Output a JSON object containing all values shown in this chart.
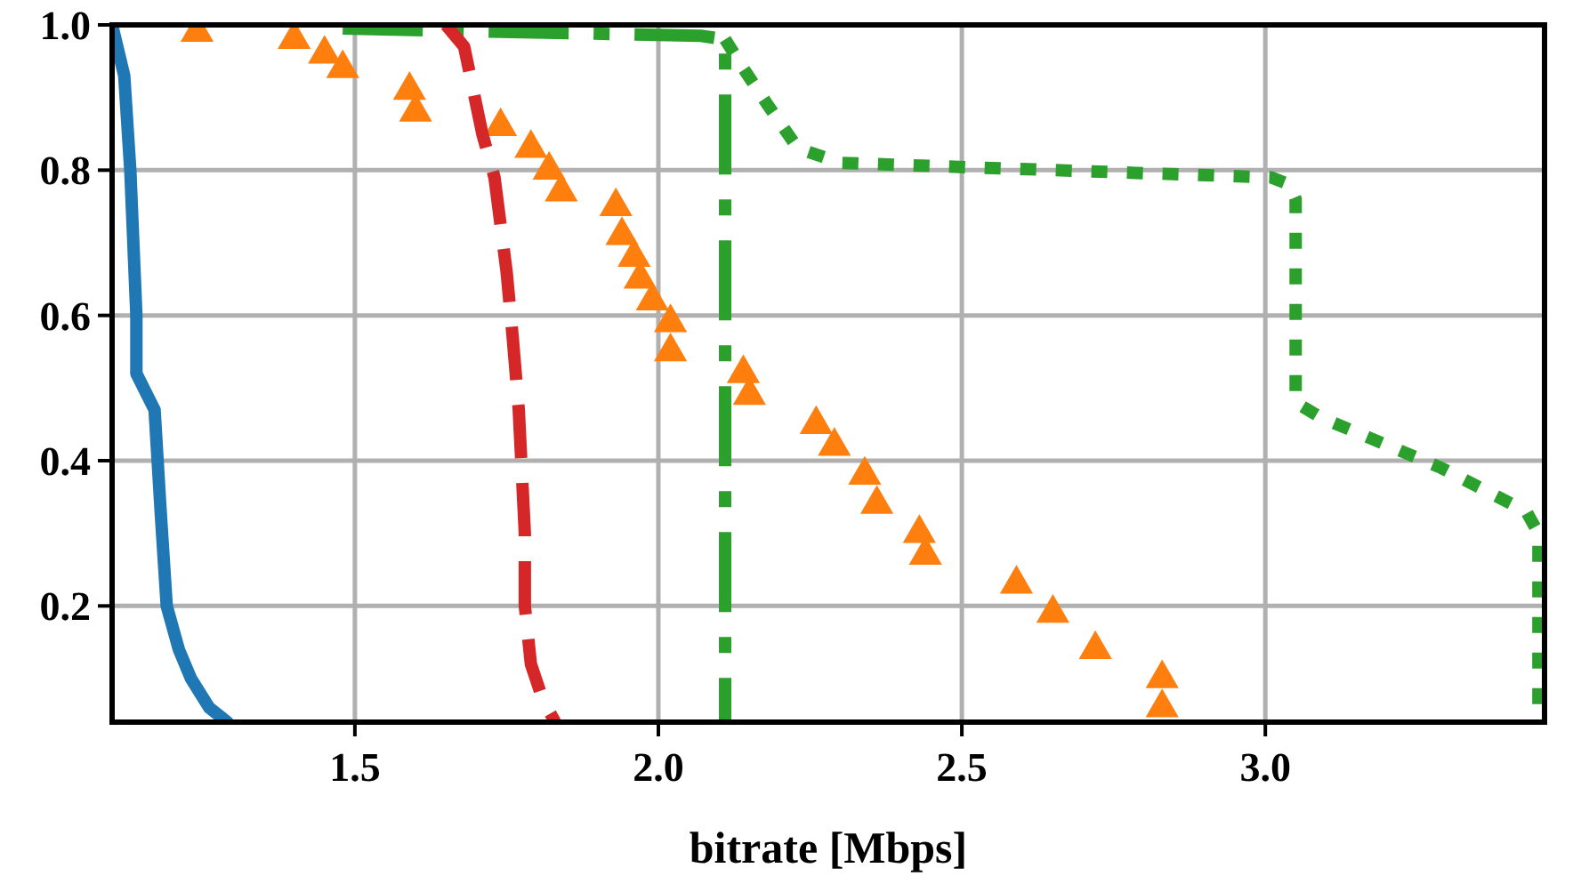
{
  "chart_data": {
    "type": "line",
    "xlabel": "bitrate [Mbps]",
    "xlim": [
      1.1,
      3.46
    ],
    "ylim": [
      0.04,
      1.0
    ],
    "xticks": [
      1.5,
      {
        "value": 2.0,
        "label": "2.0"
      },
      2.5,
      {
        "value": 3.0,
        "label": "3.0"
      }
    ],
    "yticks": [
      0.2,
      0.4,
      0.6,
      0.8,
      {
        "value": 1.0,
        "label": "1.0"
      }
    ],
    "grid": true,
    "series": [
      {
        "color": "#1f77b4",
        "line_style": "solid",
        "x": [
          1.1,
          1.12,
          1.13,
          1.14,
          1.14,
          1.17,
          1.18,
          1.19,
          1.21,
          1.23,
          1.26,
          1.29
        ],
        "values": [
          1.0,
          0.93,
          0.8,
          0.6,
          0.52,
          0.47,
          0.33,
          0.2,
          0.14,
          0.1,
          0.06,
          0.04
        ]
      },
      {
        "type": "scatter",
        "marker": "triangle",
        "color": "#ff7f0e",
        "x": [
          1.24,
          1.4,
          1.45,
          1.48,
          1.59,
          1.6,
          1.74,
          1.79,
          1.82,
          1.84,
          1.93,
          1.94,
          1.96,
          1.97,
          1.99,
          2.02,
          2.02,
          2.14,
          2.15,
          2.26,
          2.29,
          2.34,
          2.36,
          2.43,
          2.44,
          2.59,
          2.65,
          2.72,
          2.83,
          2.83
        ],
        "values": [
          0.99,
          0.98,
          0.96,
          0.94,
          0.91,
          0.88,
          0.86,
          0.83,
          0.8,
          0.77,
          0.75,
          0.71,
          0.68,
          0.65,
          0.62,
          0.59,
          0.55,
          0.52,
          0.49,
          0.45,
          0.42,
          0.38,
          0.34,
          0.3,
          0.27,
          0.23,
          0.19,
          0.14,
          0.1,
          0.06
        ]
      },
      {
        "color": "#2ca02c",
        "line_style": "dashdot",
        "x": [
          1.48,
          2.07,
          2.11,
          2.11
        ],
        "values": [
          0.995,
          0.985,
          0.98,
          0.04
        ]
      },
      {
        "color": "#2ca02c",
        "line_style": "dotted",
        "x": [
          2.11,
          2.14,
          2.18,
          2.23,
          2.3,
          3.01,
          3.04,
          3.05,
          3.05,
          3.09,
          3.29,
          3.43,
          3.45,
          3.45
        ],
        "values": [
          0.98,
          0.94,
          0.89,
          0.83,
          0.81,
          0.79,
          0.78,
          0.76,
          0.48,
          0.46,
          0.39,
          0.33,
          0.3,
          0.04
        ]
      },
      {
        "color": "#d62728",
        "line_style": "dashed",
        "x": [
          1.65,
          1.68,
          1.69,
          1.71,
          1.73,
          1.75,
          1.76,
          1.77,
          1.78,
          1.78,
          1.79,
          1.81,
          1.83
        ],
        "values": [
          1.0,
          0.97,
          0.93,
          0.85,
          0.79,
          0.66,
          0.57,
          0.47,
          0.3,
          0.2,
          0.12,
          0.07,
          0.04
        ]
      }
    ]
  }
}
